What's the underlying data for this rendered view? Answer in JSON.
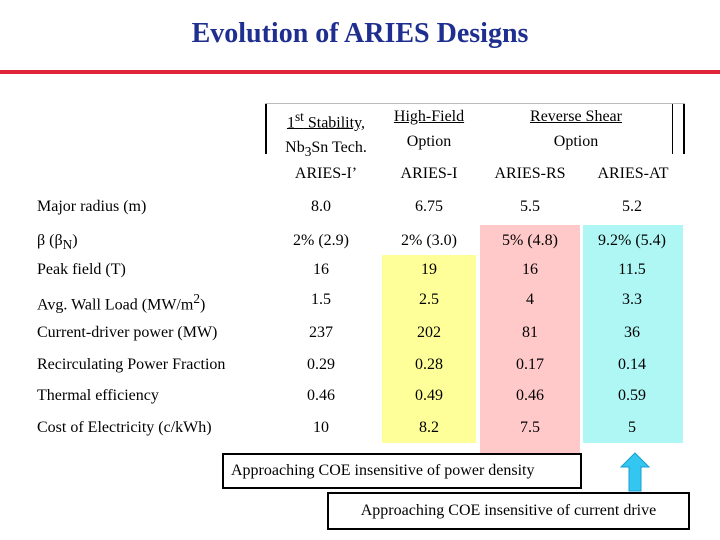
{
  "title": "Evolution of ARIES Designs",
  "colors": {
    "title": "#1f2f8f",
    "rule": "#e0253a",
    "highlight_aries_i": "#ffff99",
    "highlight_aries_rs": "#ffc9c9",
    "highlight_aries_at": "#aef7f5",
    "arrow": "#33c6f0"
  },
  "header": {
    "group1_line1": "1st Stability,",
    "group1_line2": "Nb3Sn Tech.",
    "group2_line1": "High-Field",
    "group2_line2": "Option",
    "group3_line1": "Reverse Shear",
    "group3_line2": "Option"
  },
  "designs": [
    "ARIES-I’",
    "ARIES-I",
    "ARIES-RS",
    "ARIES-AT"
  ],
  "rows": [
    {
      "label": "Major radius (m)",
      "values": [
        "8.0",
        "6.75",
        "5.5",
        "5.2"
      ]
    },
    {
      "label": "β (βN)",
      "values": [
        "2% (2.9)",
        "2% (3.0)",
        "5% (4.8)",
        "9.2% (5.4)"
      ]
    },
    {
      "label": "Peak field (T)",
      "values": [
        "16",
        "19",
        "16",
        "11.5"
      ]
    },
    {
      "label": "Avg. Wall Load (MW/m2)",
      "values": [
        "1.5",
        "2.5",
        "4",
        "3.3"
      ]
    },
    {
      "label": "Current-driver power (MW)",
      "values": [
        "237",
        "202",
        "81",
        "36"
      ]
    },
    {
      "label": "Recirculating Power Fraction",
      "values": [
        "0.29",
        "0.28",
        "0.17",
        "0.14"
      ]
    },
    {
      "label": "Thermal efficiency",
      "values": [
        "0.46",
        "0.49",
        "0.46",
        "0.59"
      ]
    },
    {
      "label": "Cost of Electricity (c/kWh)",
      "values": [
        "10",
        "8.2",
        "7.5",
        "5"
      ]
    }
  ],
  "callouts": {
    "power_density": "Approaching COE insensitive of power density",
    "current_drive": "Approaching COE insensitive of current drive"
  }
}
